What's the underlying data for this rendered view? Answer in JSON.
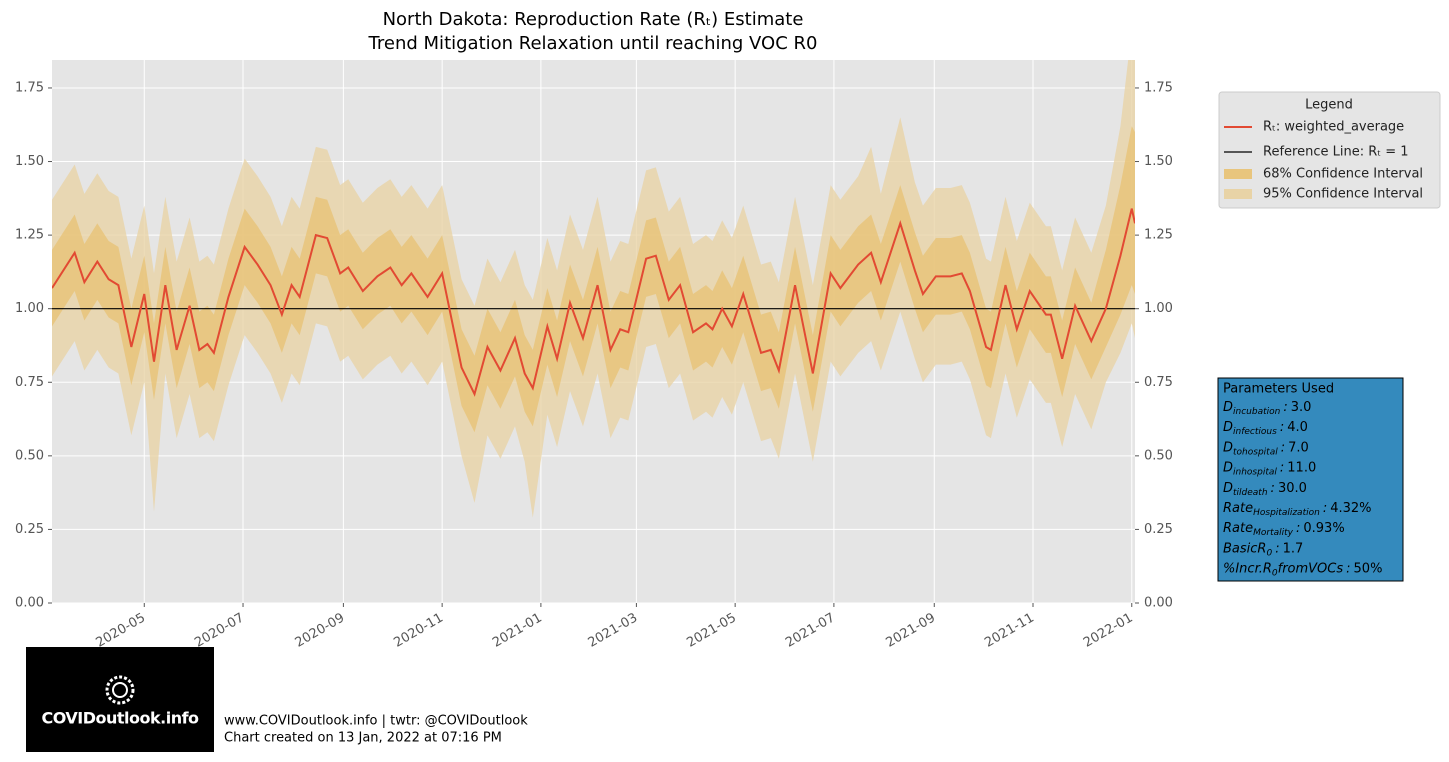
{
  "chart_data": {
    "type": "line",
    "title": "North Dakota: Reproduction Rate (Rₜ) Estimate",
    "subtitle": "Trend Mitigation Relaxation until reaching VOC R0",
    "x": [
      "2020-03-05",
      "2020-03-19",
      "2020-03-25",
      "2020-04-02",
      "2020-04-09",
      "2020-04-15",
      "2020-04-23",
      "2020-05-01",
      "2020-05-07",
      "2020-05-14",
      "2020-05-21",
      "2020-05-29",
      "2020-06-04",
      "2020-06-09",
      "2020-06-13",
      "2020-06-22",
      "2020-07-02",
      "2020-07-10",
      "2020-07-18",
      "2020-07-25",
      "2020-07-31",
      "2020-08-05",
      "2020-08-15",
      "2020-08-22",
      "2020-08-30",
      "2020-09-04",
      "2020-09-13",
      "2020-09-22",
      "2020-09-30",
      "2020-10-07",
      "2020-10-13",
      "2020-10-23",
      "2020-11-01",
      "2020-11-13",
      "2020-11-21",
      "2020-11-29",
      "2020-12-07",
      "2020-12-16",
      "2020-12-22",
      "2020-12-27",
      "2021-01-05",
      "2021-01-11",
      "2021-01-19",
      "2021-01-27",
      "2021-02-05",
      "2021-02-13",
      "2021-02-19",
      "2021-02-24",
      "2021-03-07",
      "2021-03-13",
      "2021-03-21",
      "2021-03-28",
      "2021-04-05",
      "2021-04-13",
      "2021-04-17",
      "2021-04-23",
      "2021-04-29",
      "2021-05-06",
      "2021-05-17",
      "2021-05-23",
      "2021-05-28",
      "2021-06-07",
      "2021-06-18",
      "2021-06-29",
      "2021-07-05",
      "2021-07-16",
      "2021-07-24",
      "2021-07-30",
      "2021-08-11",
      "2021-08-20",
      "2021-08-25",
      "2021-09-02",
      "2021-09-11",
      "2021-09-18",
      "2021-09-23",
      "2021-10-03",
      "2021-10-06",
      "2021-10-15",
      "2021-10-22",
      "2021-10-30",
      "2021-11-09",
      "2021-11-12",
      "2021-11-19",
      "2021-11-27",
      "2021-12-07",
      "2021-12-16",
      "2021-12-25",
      "2022-01-01",
      "2022-01-03"
    ],
    "series": [
      {
        "name": "Rₜ: weighted_average",
        "color": "#e24a33",
        "values": [
          1.07,
          1.19,
          1.09,
          1.16,
          1.1,
          1.08,
          0.87,
          1.05,
          0.82,
          1.08,
          0.86,
          1.01,
          0.86,
          0.88,
          0.85,
          1.04,
          1.21,
          1.15,
          1.08,
          0.98,
          1.08,
          1.04,
          1.25,
          1.24,
          1.12,
          1.14,
          1.06,
          1.11,
          1.14,
          1.08,
          1.12,
          1.04,
          1.12,
          0.8,
          0.71,
          0.87,
          0.79,
          0.9,
          0.78,
          0.73,
          0.94,
          0.83,
          1.02,
          0.9,
          1.08,
          0.86,
          0.93,
          0.92,
          1.17,
          1.18,
          1.03,
          1.08,
          0.92,
          0.95,
          0.93,
          1.0,
          0.94,
          1.05,
          0.85,
          0.86,
          0.79,
          1.08,
          0.78,
          1.12,
          1.07,
          1.15,
          1.19,
          1.09,
          1.29,
          1.13,
          1.05,
          1.11,
          1.11,
          1.12,
          1.06,
          0.87,
          0.86,
          1.08,
          0.93,
          1.06,
          0.98,
          0.98,
          0.83,
          1.01,
          0.89,
          1.0,
          1.18,
          1.34,
          1.29
        ]
      }
    ],
    "reference_line": {
      "name": "Reference Line: Rₜ = 1",
      "value": 1,
      "color": "#000000"
    },
    "bands": [
      {
        "name": "68% Confidence Interval",
        "color": "#e8bd63",
        "opacity": 0.6,
        "upper": [
          1.2,
          1.32,
          1.22,
          1.29,
          1.23,
          1.21,
          1.0,
          1.18,
          0.95,
          1.21,
          0.99,
          1.14,
          0.99,
          1.01,
          0.98,
          1.17,
          1.34,
          1.28,
          1.21,
          1.11,
          1.21,
          1.17,
          1.38,
          1.37,
          1.25,
          1.27,
          1.19,
          1.24,
          1.27,
          1.21,
          1.25,
          1.17,
          1.25,
          0.93,
          0.84,
          1.0,
          0.92,
          1.03,
          0.91,
          0.86,
          1.07,
          0.96,
          1.15,
          1.03,
          1.21,
          0.99,
          1.06,
          1.05,
          1.3,
          1.31,
          1.16,
          1.21,
          1.05,
          1.08,
          1.06,
          1.13,
          1.07,
          1.18,
          0.98,
          0.99,
          0.92,
          1.21,
          0.91,
          1.25,
          1.2,
          1.28,
          1.32,
          1.22,
          1.42,
          1.26,
          1.18,
          1.24,
          1.24,
          1.25,
          1.19,
          1.0,
          0.99,
          1.21,
          1.06,
          1.19,
          1.11,
          1.11,
          0.96,
          1.14,
          1.02,
          1.2,
          1.42,
          1.62,
          1.6
        ],
        "lower": [
          0.94,
          1.06,
          0.96,
          1.03,
          0.97,
          0.95,
          0.74,
          0.92,
          0.69,
          0.95,
          0.73,
          0.88,
          0.73,
          0.75,
          0.72,
          0.91,
          1.08,
          1.02,
          0.95,
          0.85,
          0.95,
          0.91,
          1.12,
          1.11,
          0.99,
          1.01,
          0.93,
          0.98,
          1.01,
          0.95,
          0.99,
          0.91,
          0.99,
          0.67,
          0.58,
          0.74,
          0.66,
          0.77,
          0.65,
          0.6,
          0.81,
          0.7,
          0.89,
          0.77,
          0.95,
          0.73,
          0.8,
          0.79,
          1.04,
          1.05,
          0.9,
          0.95,
          0.79,
          0.82,
          0.8,
          0.87,
          0.81,
          0.92,
          0.72,
          0.73,
          0.66,
          0.95,
          0.65,
          0.99,
          0.94,
          1.02,
          1.06,
          0.96,
          1.16,
          1.0,
          0.92,
          0.98,
          0.98,
          0.99,
          0.93,
          0.74,
          0.73,
          0.95,
          0.8,
          0.93,
          0.85,
          0.85,
          0.7,
          0.88,
          0.76,
          0.87,
          0.98,
          1.08,
          1.05
        ]
      },
      {
        "name": "95% Confidence Interval",
        "color": "#e8d2a2",
        "opacity": 0.75,
        "upper": [
          1.37,
          1.49,
          1.39,
          1.46,
          1.4,
          1.38,
          1.17,
          1.35,
          1.12,
          1.38,
          1.16,
          1.31,
          1.16,
          1.18,
          1.15,
          1.34,
          1.51,
          1.45,
          1.38,
          1.28,
          1.38,
          1.34,
          1.55,
          1.54,
          1.42,
          1.44,
          1.36,
          1.41,
          1.44,
          1.38,
          1.42,
          1.34,
          1.42,
          1.1,
          1.01,
          1.17,
          1.09,
          1.2,
          1.08,
          1.03,
          1.24,
          1.13,
          1.32,
          1.2,
          1.38,
          1.16,
          1.23,
          1.22,
          1.47,
          1.48,
          1.33,
          1.38,
          1.22,
          1.25,
          1.23,
          1.3,
          1.24,
          1.35,
          1.15,
          1.16,
          1.09,
          1.38,
          1.08,
          1.42,
          1.37,
          1.45,
          1.55,
          1.39,
          1.65,
          1.43,
          1.35,
          1.41,
          1.41,
          1.42,
          1.36,
          1.17,
          1.16,
          1.38,
          1.23,
          1.36,
          1.28,
          1.28,
          1.13,
          1.31,
          1.19,
          1.35,
          1.62,
          1.95,
          1.95
        ],
        "lower": [
          0.77,
          0.89,
          0.79,
          0.86,
          0.8,
          0.78,
          0.57,
          0.75,
          0.31,
          0.78,
          0.56,
          0.71,
          0.56,
          0.58,
          0.55,
          0.74,
          0.91,
          0.85,
          0.78,
          0.68,
          0.78,
          0.74,
          0.95,
          0.94,
          0.82,
          0.84,
          0.76,
          0.81,
          0.84,
          0.78,
          0.82,
          0.74,
          0.82,
          0.5,
          0.34,
          0.57,
          0.49,
          0.6,
          0.48,
          0.29,
          0.64,
          0.53,
          0.72,
          0.6,
          0.78,
          0.56,
          0.63,
          0.62,
          0.87,
          0.88,
          0.73,
          0.78,
          0.62,
          0.65,
          0.63,
          0.7,
          0.64,
          0.75,
          0.55,
          0.56,
          0.49,
          0.78,
          0.48,
          0.82,
          0.77,
          0.85,
          0.89,
          0.79,
          0.99,
          0.83,
          0.75,
          0.81,
          0.81,
          0.82,
          0.76,
          0.57,
          0.56,
          0.78,
          0.63,
          0.76,
          0.68,
          0.68,
          0.53,
          0.71,
          0.59,
          0.75,
          0.85,
          0.95,
          0.9
        ]
      }
    ],
    "xlim": [
      "2020-03-05",
      "2022-01-03"
    ],
    "xticks": [
      {
        "value": "2020-05-01",
        "label": "2020-05"
      },
      {
        "value": "2020-07-01",
        "label": "2020-07"
      },
      {
        "value": "2020-09-01",
        "label": "2020-09"
      },
      {
        "value": "2020-11-01",
        "label": "2020-11"
      },
      {
        "value": "2021-01-01",
        "label": "2021-01"
      },
      {
        "value": "2021-03-01",
        "label": "2021-03"
      },
      {
        "value": "2021-05-01",
        "label": "2021-05"
      },
      {
        "value": "2021-07-01",
        "label": "2021-07"
      },
      {
        "value": "2021-09-01",
        "label": "2021-09"
      },
      {
        "value": "2021-11-01",
        "label": "2021-11"
      },
      {
        "value": "2022-01-01",
        "label": "2022-01"
      }
    ],
    "ylim": [
      0,
      1.845
    ],
    "yticks": [
      {
        "value": 0,
        "label": "0.00"
      },
      0.25,
      {
        "value": 0.5,
        "label": "0.50"
      },
      0.75,
      {
        "value": 1,
        "label": "1.00"
      },
      1.25,
      {
        "value": 1.5,
        "label": "1.50"
      },
      1.75
    ],
    "grid": true,
    "legend_title": "Legend",
    "legend": "upper right outside"
  },
  "parameters": {
    "title": "Parameters Used",
    "separator": ":",
    "items": [
      {
        "symbol": "D",
        "subscript": "incubation",
        "value": "3.0"
      },
      {
        "symbol": "D",
        "subscript": "infectious",
        "value": "4.0"
      },
      {
        "symbol": "D",
        "subscript": "tohospital",
        "value": "7.0"
      },
      {
        "symbol": "D",
        "subscript": "inhospital",
        "value": "11.0"
      },
      {
        "symbol": "D",
        "subscript": "tildeath",
        "value": "30.0"
      },
      {
        "symbol": "Rate",
        "subscript": "Hospitalization",
        "value": "4.32%"
      },
      {
        "symbol": "Rate",
        "subscript": "Mortality",
        "value": "0.93%"
      },
      {
        "symbol": "BasicR",
        "subscript": "0",
        "value": "1.7"
      },
      {
        "symbol": "%Incr.R",
        "subscript": "0",
        "suffix": "fromVOCs",
        "value": "50%"
      }
    ]
  },
  "footer": {
    "logo": "COVIDoutlook.info",
    "lines": [
      "www.COVIDoutlook.info | twtr: @COVIDoutlook",
      "Chart created on 13 Jan, 2022 at 07:16 PM"
    ]
  }
}
